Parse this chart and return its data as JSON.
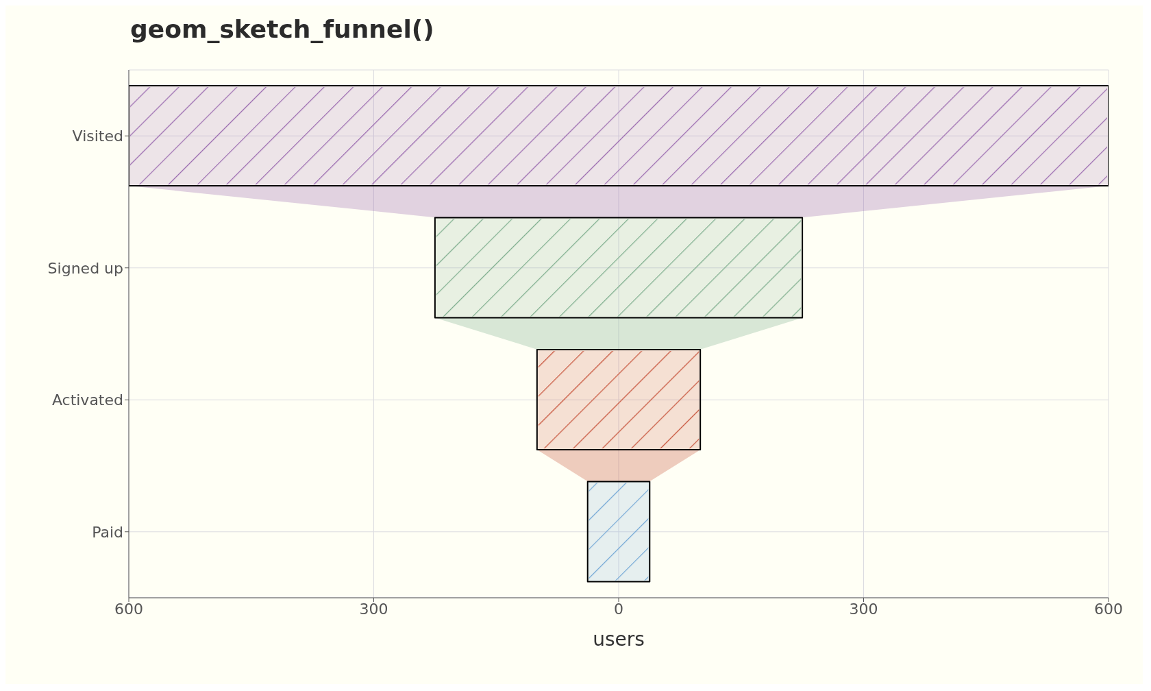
{
  "chart_data": {
    "type": "bar",
    "orientation": "horizontal",
    "title": "geom_sketch_funnel()",
    "xlabel": "users",
    "categories": [
      "Visited",
      "Signed up",
      "Activated",
      "Paid"
    ],
    "base": [
      -600,
      -225,
      -100,
      -38
    ],
    "values": [
      1200,
      450,
      200,
      76
    ],
    "colors": [
      "#9b6bb0",
      "#7fae8e",
      "#c8553d",
      "#75a9d6"
    ],
    "xlim": [
      -600,
      600
    ],
    "xticks": [
      {
        "value": -600,
        "label": "600"
      },
      {
        "value": -300,
        "label": "300"
      },
      0,
      300,
      600
    ],
    "grid": true
  }
}
